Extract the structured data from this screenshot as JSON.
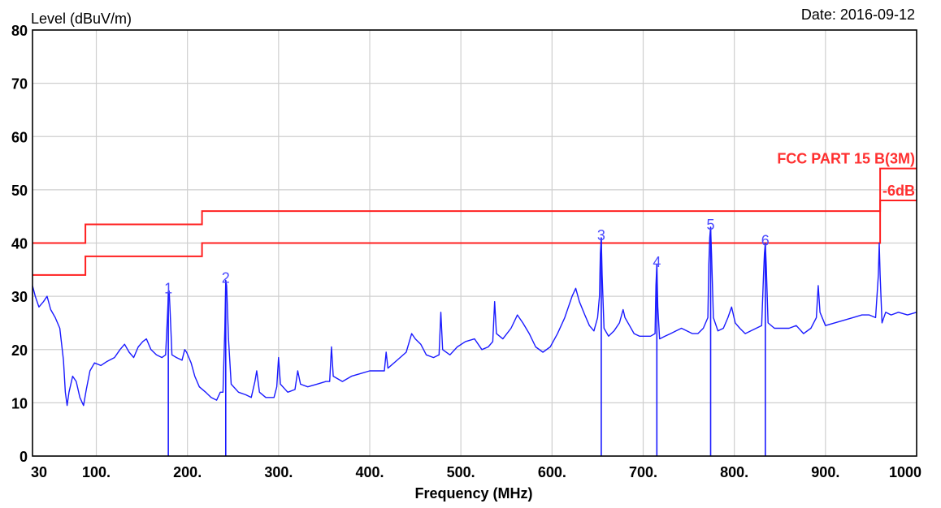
{
  "header": {
    "y_title": "Level (dBuV/m)",
    "date": "Date: 2016-09-12"
  },
  "colors": {
    "trace": "#1a1aff",
    "limit": "#ff2020",
    "grid": "#cfcfcf",
    "frame": "#000000",
    "marker_label": "#4a4aff"
  },
  "chart_data": {
    "type": "line",
    "title": "",
    "xlabel": "Frequency (MHz)",
    "ylabel": "Level (dBuV/m)",
    "xlim": [
      30,
      1000
    ],
    "ylim": [
      0,
      80
    ],
    "grid": true,
    "x_ticks": [
      {
        "value": 30,
        "label": "30"
      },
      {
        "value": 100,
        "label": "100."
      },
      {
        "value": 200,
        "label": "200."
      },
      {
        "value": 300,
        "label": "300."
      },
      {
        "value": 400,
        "label": "400."
      },
      {
        "value": 500,
        "label": "500."
      },
      {
        "value": 600,
        "label": "600."
      },
      {
        "value": 700,
        "label": "700."
      },
      {
        "value": 800,
        "label": "800."
      },
      {
        "value": 900,
        "label": "900."
      },
      {
        "value": 1000,
        "label": "1000"
      }
    ],
    "y_ticks": [
      {
        "value": 0,
        "label": "0"
      },
      {
        "value": 10,
        "label": "10"
      },
      {
        "value": 20,
        "label": "20"
      },
      {
        "value": 30,
        "label": "30"
      },
      {
        "value": 40,
        "label": "40"
      },
      {
        "value": 50,
        "label": "50"
      },
      {
        "value": 60,
        "label": "60"
      },
      {
        "value": 70,
        "label": "70"
      },
      {
        "value": 80,
        "label": "80"
      }
    ],
    "limits": [
      {
        "name": "FCC PART 15 B(3M)",
        "points": [
          [
            30,
            40
          ],
          [
            88,
            40
          ],
          [
            88,
            43.5
          ],
          [
            216,
            43.5
          ],
          [
            216,
            46
          ],
          [
            960,
            46
          ],
          [
            960,
            54
          ],
          [
            1000,
            54
          ]
        ]
      },
      {
        "name": "-6dB",
        "points": [
          [
            30,
            34
          ],
          [
            88,
            34
          ],
          [
            88,
            37.5
          ],
          [
            216,
            37.5
          ],
          [
            216,
            40
          ],
          [
            960,
            40
          ],
          [
            960,
            48
          ],
          [
            1000,
            48
          ]
        ]
      }
    ],
    "trace": {
      "points": [
        [
          30,
          32
        ],
        [
          33,
          30
        ],
        [
          37,
          28
        ],
        [
          42,
          29
        ],
        [
          46,
          30
        ],
        [
          50,
          27.5
        ],
        [
          55,
          26
        ],
        [
          60,
          24
        ],
        [
          64,
          18
        ],
        [
          66,
          12
        ],
        [
          68,
          9.5
        ],
        [
          70,
          12
        ],
        [
          74,
          15
        ],
        [
          78,
          14
        ],
        [
          82,
          11
        ],
        [
          86,
          9.5
        ],
        [
          89,
          12.5
        ],
        [
          93,
          16
        ],
        [
          98,
          17.5
        ],
        [
          105,
          17
        ],
        [
          112,
          17.8
        ],
        [
          120,
          18.5
        ],
        [
          126,
          20
        ],
        [
          131,
          21
        ],
        [
          136,
          19.5
        ],
        [
          141,
          18.5
        ],
        [
          146,
          20.5
        ],
        [
          151,
          21.5
        ],
        [
          155,
          22
        ],
        [
          160,
          20
        ],
        [
          166,
          19
        ],
        [
          172,
          18.5
        ],
        [
          176,
          19
        ],
        [
          178,
          26
        ],
        [
          179,
          30
        ],
        [
          180,
          31
        ],
        [
          181,
          27
        ],
        [
          183,
          19
        ],
        [
          188,
          18.5
        ],
        [
          194,
          18
        ],
        [
          197,
          20
        ],
        [
          199,
          19.5
        ],
        [
          204,
          17.5
        ],
        [
          208,
          15
        ],
        [
          213,
          13
        ],
        [
          220,
          12
        ],
        [
          226,
          11
        ],
        [
          232,
          10.5
        ],
        [
          236,
          12
        ],
        [
          239,
          12
        ],
        [
          241,
          24
        ],
        [
          242,
          33
        ],
        [
          243,
          32
        ],
        [
          245,
          22
        ],
        [
          248,
          13.5
        ],
        [
          256,
          12
        ],
        [
          264,
          11.5
        ],
        [
          270,
          11
        ],
        [
          274,
          14
        ],
        [
          276,
          16
        ],
        [
          279,
          12
        ],
        [
          286,
          11
        ],
        [
          295,
          11
        ],
        [
          298,
          13
        ],
        [
          300,
          18.5
        ],
        [
          302,
          13.5
        ],
        [
          310,
          12
        ],
        [
          318,
          12.5
        ],
        [
          321,
          16
        ],
        [
          324,
          13.5
        ],
        [
          332,
          13
        ],
        [
          342,
          13.5
        ],
        [
          352,
          14
        ],
        [
          356,
          14
        ],
        [
          358,
          20.5
        ],
        [
          360,
          15
        ],
        [
          370,
          14
        ],
        [
          380,
          15
        ],
        [
          390,
          15.5
        ],
        [
          400,
          16
        ],
        [
          410,
          16
        ],
        [
          416,
          16
        ],
        [
          418,
          19.5
        ],
        [
          420,
          16.5
        ],
        [
          430,
          18
        ],
        [
          440,
          19.5
        ],
        [
          446,
          23
        ],
        [
          450,
          22
        ],
        [
          456,
          21
        ],
        [
          462,
          19
        ],
        [
          470,
          18.5
        ],
        [
          476,
          19
        ],
        [
          478,
          27
        ],
        [
          480,
          20
        ],
        [
          488,
          19
        ],
        [
          496,
          20.5
        ],
        [
          505,
          21.5
        ],
        [
          515,
          22
        ],
        [
          523,
          20
        ],
        [
          530,
          20.5
        ],
        [
          535,
          21.5
        ],
        [
          537,
          29
        ],
        [
          539,
          23
        ],
        [
          546,
          22
        ],
        [
          555,
          24
        ],
        [
          562,
          26.5
        ],
        [
          568,
          25
        ],
        [
          575,
          23
        ],
        [
          582,
          20.5
        ],
        [
          590,
          19.5
        ],
        [
          598,
          20.5
        ],
        [
          606,
          23
        ],
        [
          614,
          26
        ],
        [
          622,
          30
        ],
        [
          626,
          31.5
        ],
        [
          630,
          29
        ],
        [
          636,
          26.5
        ],
        [
          641,
          24.5
        ],
        [
          646,
          23.5
        ],
        [
          650,
          26
        ],
        [
          652,
          30
        ],
        [
          653,
          38
        ],
        [
          654,
          41
        ],
        [
          655,
          34
        ],
        [
          657,
          24
        ],
        [
          662,
          22.5
        ],
        [
          668,
          23.5
        ],
        [
          674,
          25
        ],
        [
          678,
          27.5
        ],
        [
          680,
          26
        ],
        [
          685,
          24.5
        ],
        [
          690,
          23
        ],
        [
          696,
          22.5
        ],
        [
          702,
          22.5
        ],
        [
          708,
          22.5
        ],
        [
          713,
          23
        ],
        [
          714,
          32
        ],
        [
          715,
          36
        ],
        [
          716,
          28
        ],
        [
          718,
          22
        ],
        [
          724,
          22.5
        ],
        [
          730,
          23
        ],
        [
          736,
          23.5
        ],
        [
          742,
          24
        ],
        [
          748,
          23.5
        ],
        [
          754,
          23
        ],
        [
          760,
          23
        ],
        [
          766,
          24
        ],
        [
          771,
          26
        ],
        [
          772,
          36
        ],
        [
          773,
          41
        ],
        [
          774,
          43
        ],
        [
          775,
          38
        ],
        [
          777,
          26
        ],
        [
          782,
          23.5
        ],
        [
          788,
          24
        ],
        [
          793,
          26
        ],
        [
          797,
          28
        ],
        [
          801,
          25
        ],
        [
          806,
          24
        ],
        [
          812,
          23
        ],
        [
          818,
          23.5
        ],
        [
          824,
          24
        ],
        [
          830,
          24.5
        ],
        [
          832,
          34
        ],
        [
          833,
          38
        ],
        [
          834,
          40
        ],
        [
          835,
          36
        ],
        [
          837,
          25
        ],
        [
          844,
          24
        ],
        [
          852,
          24
        ],
        [
          860,
          24
        ],
        [
          868,
          24.5
        ],
        [
          876,
          23
        ],
        [
          884,
          24
        ],
        [
          890,
          26
        ],
        [
          892,
          32
        ],
        [
          894,
          27
        ],
        [
          900,
          24.5
        ],
        [
          910,
          25
        ],
        [
          920,
          25.5
        ],
        [
          930,
          26
        ],
        [
          940,
          26.5
        ],
        [
          948,
          26.5
        ],
        [
          955,
          26
        ],
        [
          958,
          34
        ],
        [
          959,
          40
        ],
        [
          960,
          34
        ],
        [
          962,
          25
        ],
        [
          966,
          27
        ],
        [
          972,
          26.5
        ],
        [
          980,
          27
        ],
        [
          990,
          26.5
        ],
        [
          1000,
          27
        ]
      ]
    },
    "markers": [
      {
        "label": "1",
        "x": 179,
        "y": 31
      },
      {
        "label": "2",
        "x": 242,
        "y": 33
      },
      {
        "label": "3",
        "x": 654,
        "y": 41
      },
      {
        "label": "4",
        "x": 715,
        "y": 36
      },
      {
        "label": "5",
        "x": 774,
        "y": 43
      },
      {
        "label": "6",
        "x": 834,
        "y": 40
      }
    ]
  }
}
